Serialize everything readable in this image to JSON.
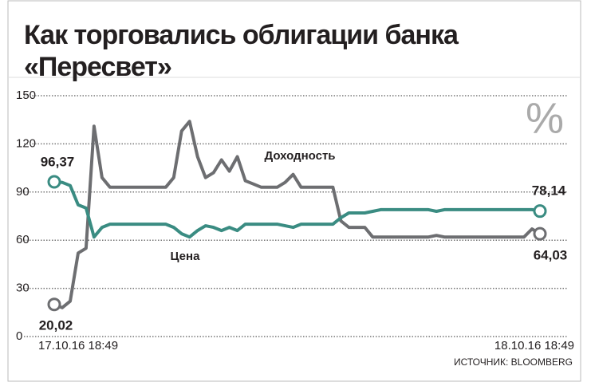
{
  "chart_data": {
    "type": "line",
    "title": "Как торговались облигации банка\n«Пересвет»",
    "unit_annotation": "%",
    "source": "ИСТОЧНИК: BLOOMBERG",
    "categories": [
      "17.10.16 18:49",
      null,
      null,
      null,
      null,
      null,
      null,
      null,
      null,
      null,
      null,
      null,
      null,
      null,
      null,
      null,
      null,
      null,
      null,
      null,
      null,
      null,
      null,
      null,
      null,
      null,
      null,
      null,
      null,
      null,
      null,
      null,
      null,
      null,
      null,
      null,
      null,
      null,
      null,
      null,
      null,
      null,
      null,
      null,
      null,
      null,
      null,
      null,
      null,
      null,
      null,
      null,
      null,
      null,
      null,
      null,
      null,
      null,
      null,
      null,
      null,
      "18.10.16 18:49"
    ],
    "series": [
      {
        "name": "Доходность",
        "color": "#6d6e71",
        "values": [
          20.02,
          18,
          22,
          52,
          55,
          131,
          99,
          93,
          93,
          93,
          93,
          93,
          93,
          93,
          93,
          99,
          128,
          134,
          112,
          99,
          102,
          110,
          103,
          112,
          97,
          95,
          93,
          93,
          93,
          96,
          101,
          93,
          93,
          93,
          93,
          93,
          72,
          68,
          68,
          68,
          62,
          62,
          62,
          62,
          62,
          62,
          62,
          62,
          63,
          62,
          62,
          62,
          62,
          62,
          62,
          62,
          62,
          62,
          62,
          62,
          67,
          64.03
        ],
        "value_labels": [
          "20,02",
          null,
          null,
          null,
          null,
          null,
          null,
          null,
          null,
          null,
          null,
          null,
          null,
          null,
          null,
          null,
          null,
          null,
          null,
          null,
          null,
          null,
          null,
          null,
          null,
          null,
          null,
          null,
          null,
          null,
          null,
          null,
          null,
          null,
          null,
          null,
          null,
          null,
          null,
          null,
          null,
          null,
          null,
          null,
          null,
          null,
          null,
          null,
          null,
          null,
          null,
          null,
          null,
          null,
          null,
          null,
          null,
          null,
          null,
          null,
          null,
          "64,03"
        ]
      },
      {
        "name": "Цена",
        "color": "#3a8c82",
        "values": [
          96.37,
          96,
          94,
          82,
          80,
          62,
          68,
          70,
          70,
          70,
          70,
          70,
          70,
          70,
          70,
          68,
          64,
          62,
          66,
          69,
          68,
          66,
          68,
          66,
          70,
          70,
          70,
          70,
          70,
          69,
          68,
          70,
          70,
          70,
          70,
          70,
          74,
          77,
          77,
          77,
          78,
          79,
          79,
          79,
          79,
          79,
          79,
          79,
          78,
          79,
          79,
          79,
          79,
          79,
          79,
          79,
          79,
          79,
          79,
          79,
          79,
          78.14
        ],
        "value_labels": [
          "96,37",
          null,
          null,
          null,
          null,
          null,
          null,
          null,
          null,
          null,
          null,
          null,
          null,
          null,
          null,
          null,
          null,
          null,
          null,
          null,
          null,
          null,
          null,
          null,
          null,
          null,
          null,
          null,
          null,
          null,
          null,
          null,
          null,
          null,
          null,
          null,
          null,
          null,
          null,
          null,
          null,
          null,
          null,
          null,
          null,
          null,
          null,
          null,
          null,
          null,
          null,
          null,
          null,
          null,
          null,
          null,
          null,
          null,
          null,
          null,
          null,
          "78,14"
        ]
      }
    ],
    "ylim": [
      0,
      150
    ],
    "yticks": [
      0,
      30,
      60,
      90,
      120,
      150
    ],
    "grid": true
  }
}
